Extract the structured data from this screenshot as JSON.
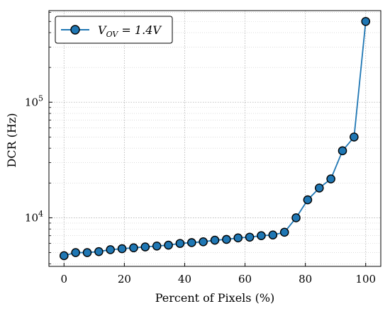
{
  "chart_data": {
    "type": "line",
    "xlabel": "Percent of Pixels (%)",
    "ylabel": "DCR (Hz)",
    "xlim": [
      -5,
      105
    ],
    "ylim": [
      3800,
      620000
    ],
    "yscale": "log",
    "x_ticks": [
      0,
      20,
      40,
      60,
      80,
      100
    ],
    "x_tick_labels": [
      "0",
      "20",
      "40",
      "60",
      "80",
      "100"
    ],
    "y_ticks": [
      10000,
      100000
    ],
    "y_tick_labels": [
      {
        "base": "10",
        "exp": "4"
      },
      {
        "base": "10",
        "exp": "5"
      }
    ],
    "grid": true,
    "legend_position": "top-left",
    "series": [
      {
        "name": "V_OV = 1.4V",
        "legend_main": "V",
        "legend_sub": "OV",
        "legend_rest": " = 1.4V",
        "color": "#1f77b4",
        "marker_edge": "#000000",
        "x": [
          0,
          3.85,
          7.69,
          11.54,
          15.38,
          19.23,
          23.08,
          26.92,
          30.77,
          34.62,
          38.46,
          42.31,
          46.15,
          50.0,
          53.85,
          57.69,
          61.54,
          65.38,
          69.23,
          73.08,
          76.92,
          80.77,
          84.62,
          88.46,
          92.31,
          96.15,
          100.0
        ],
        "y": [
          4700,
          5000,
          5000,
          5100,
          5300,
          5400,
          5500,
          5600,
          5700,
          5800,
          6000,
          6100,
          6200,
          6400,
          6500,
          6700,
          6800,
          7000,
          7100,
          7500,
          10000,
          14300,
          18100,
          21700,
          38000,
          50000,
          500000
        ]
      }
    ]
  }
}
